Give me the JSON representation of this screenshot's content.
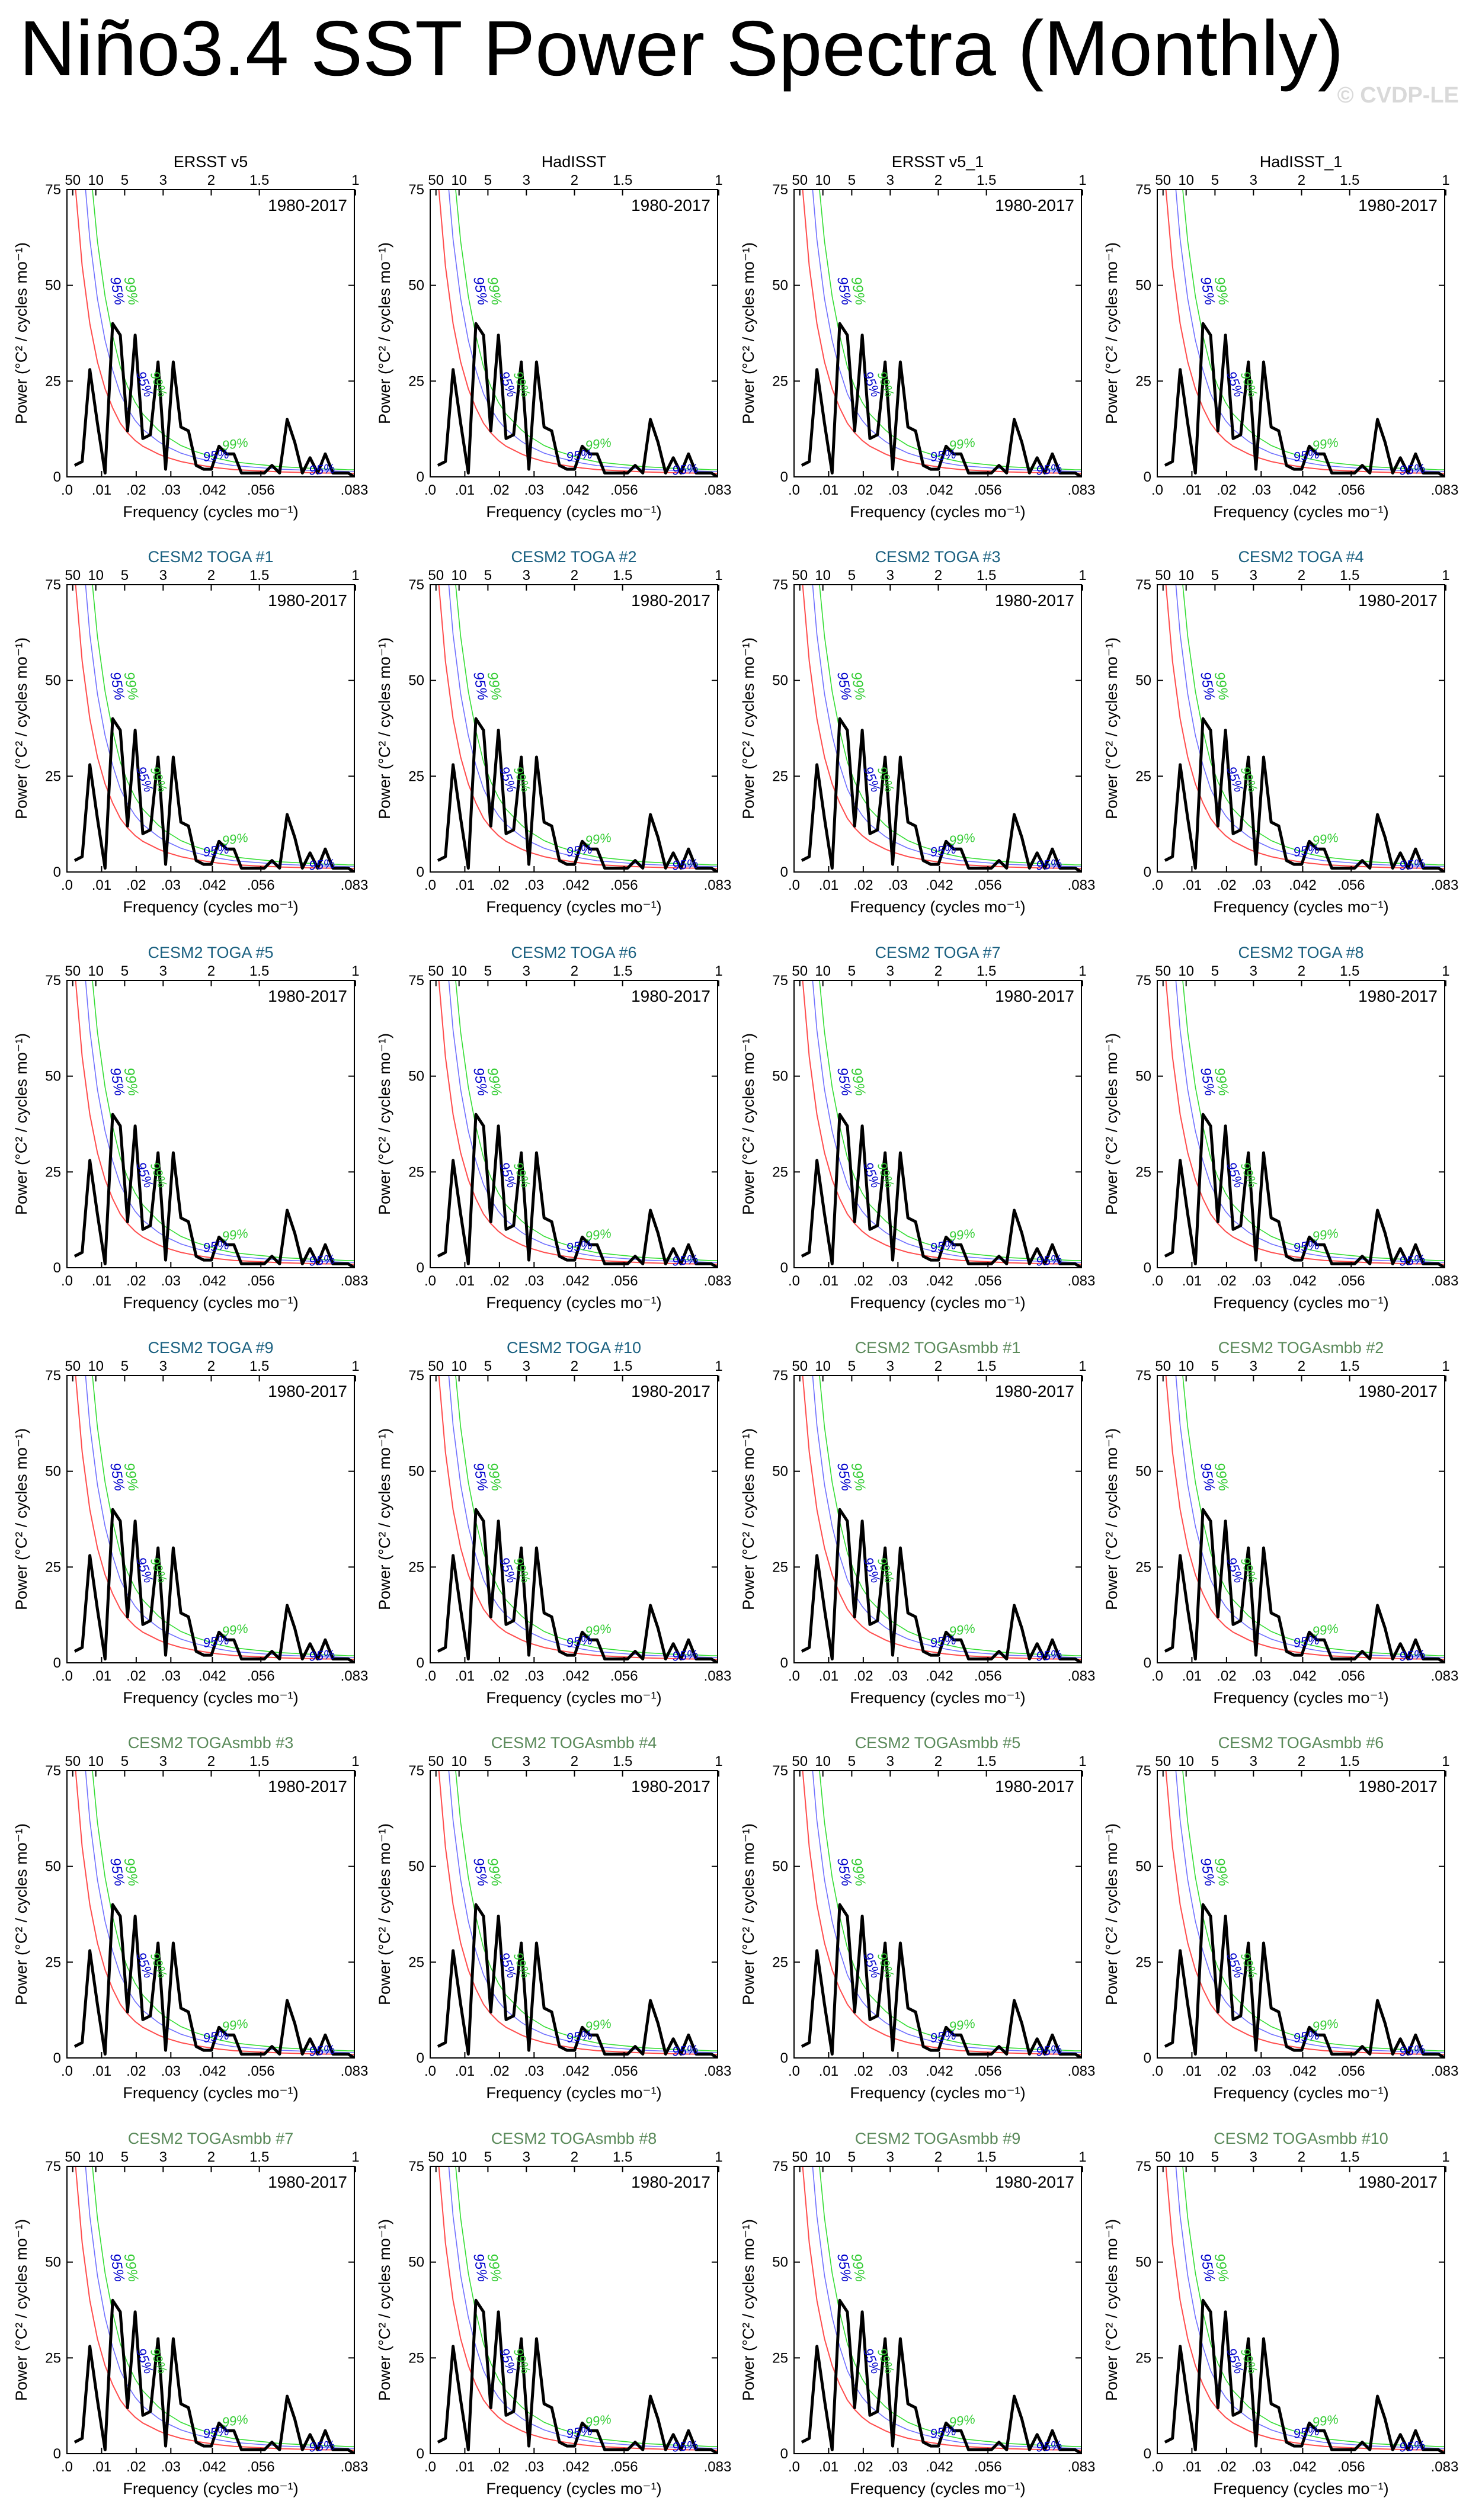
{
  "figure": {
    "title": "Niño3.4 SST Power Spectra (Monthly)",
    "watermark": "© CVDP-LE",
    "colors": {
      "spectrum": "#000000",
      "red_noise": "#ff4d4d",
      "sig95": "#6f6fff",
      "sig99": "#33dd33",
      "label95": "#0000cc",
      "label99": "#33cc33",
      "obs_title": "#000000",
      "toga_title": "#1a6080",
      "togasmbb_title": "#5a8a5a"
    }
  },
  "chart_data": {
    "type": "line",
    "xlabel": "Frequency (cycles mo⁻¹)",
    "ylabel": "Power (°C² / cycles mo⁻¹)",
    "top_xlabel_ticks": [
      "50",
      "10",
      "5",
      "3",
      "2",
      "1.5",
      "1"
    ],
    "top_tick_periods_years": [
      50,
      10,
      5,
      3,
      2,
      1.5,
      1
    ],
    "xticks": [
      ".0",
      ".01",
      ".02",
      ".03",
      ".042",
      ".056",
      ".083"
    ],
    "xtick_values": [
      0,
      0.01,
      0.02,
      0.03,
      0.042,
      0.056,
      0.083
    ],
    "yticks": [
      "0",
      "25",
      "50",
      "75"
    ],
    "ytick_values": [
      0,
      25,
      50,
      75
    ],
    "xlim": [
      0,
      0.083
    ],
    "ylim": [
      0,
      75
    ],
    "period_label": "1980-2017",
    "sig_labels": {
      "sig95": "95%",
      "sig99": "99%"
    },
    "frequencies": [
      0.0022,
      0.0044,
      0.0066,
      0.0088,
      0.011,
      0.0132,
      0.0154,
      0.0175,
      0.0197,
      0.0219,
      0.0241,
      0.0263,
      0.0285,
      0.0307,
      0.0329,
      0.0351,
      0.0373,
      0.0395,
      0.0417,
      0.0439,
      0.0461,
      0.0482,
      0.0504,
      0.0526,
      0.0548,
      0.057,
      0.0592,
      0.0614,
      0.0636,
      0.0658,
      0.068,
      0.0702,
      0.0724,
      0.0746,
      0.0768,
      0.079,
      0.0812,
      0.083
    ],
    "power": [
      3,
      4,
      28,
      14,
      1,
      40,
      37,
      12,
      37,
      10,
      11,
      30,
      2,
      30,
      13,
      12,
      3,
      2,
      2,
      8,
      6,
      6,
      1,
      1,
      1,
      1,
      3,
      1,
      15,
      9,
      1,
      5,
      1,
      6,
      1,
      1,
      1,
      0
    ],
    "red_noise": [
      78,
      55,
      40,
      30,
      23,
      18,
      14,
      11.5,
      9.5,
      8,
      7,
      6,
      5.2,
      4.6,
      4,
      3.6,
      3.2,
      2.9,
      2.6,
      2.3,
      2.1,
      1.9,
      1.8,
      1.7,
      1.6,
      1.5,
      1.4,
      1.3,
      1.25,
      1.2,
      1.15,
      1.1,
      1.05,
      1,
      1,
      0.95,
      0.9,
      0.9
    ],
    "panels": [
      {
        "title": "ERSST v5",
        "group": "obs"
      },
      {
        "title": "HadISST",
        "group": "obs"
      },
      {
        "title": "ERSST v5_1",
        "group": "obs"
      },
      {
        "title": "HadISST_1",
        "group": "obs"
      },
      {
        "title": "CESM2 TOGA #1",
        "group": "toga"
      },
      {
        "title": "CESM2 TOGA #2",
        "group": "toga"
      },
      {
        "title": "CESM2 TOGA #3",
        "group": "toga"
      },
      {
        "title": "CESM2 TOGA #4",
        "group": "toga"
      },
      {
        "title": "CESM2 TOGA #5",
        "group": "toga"
      },
      {
        "title": "CESM2 TOGA #6",
        "group": "toga"
      },
      {
        "title": "CESM2 TOGA #7",
        "group": "toga"
      },
      {
        "title": "CESM2 TOGA #8",
        "group": "toga"
      },
      {
        "title": "CESM2 TOGA #9",
        "group": "toga"
      },
      {
        "title": "CESM2 TOGA #10",
        "group": "toga"
      },
      {
        "title": "CESM2 TOGAsmbb #1",
        "group": "togasmbb"
      },
      {
        "title": "CESM2 TOGAsmbb #2",
        "group": "togasmbb"
      },
      {
        "title": "CESM2 TOGAsmbb #3",
        "group": "togasmbb"
      },
      {
        "title": "CESM2 TOGAsmbb #4",
        "group": "togasmbb"
      },
      {
        "title": "CESM2 TOGAsmbb #5",
        "group": "togasmbb"
      },
      {
        "title": "CESM2 TOGAsmbb #6",
        "group": "togasmbb"
      },
      {
        "title": "CESM2 TOGAsmbb #7",
        "group": "togasmbb"
      },
      {
        "title": "CESM2 TOGAsmbb #8",
        "group": "togasmbb"
      },
      {
        "title": "CESM2 TOGAsmbb #9",
        "group": "togasmbb"
      },
      {
        "title": "CESM2 TOGAsmbb #10",
        "group": "togasmbb"
      }
    ]
  }
}
